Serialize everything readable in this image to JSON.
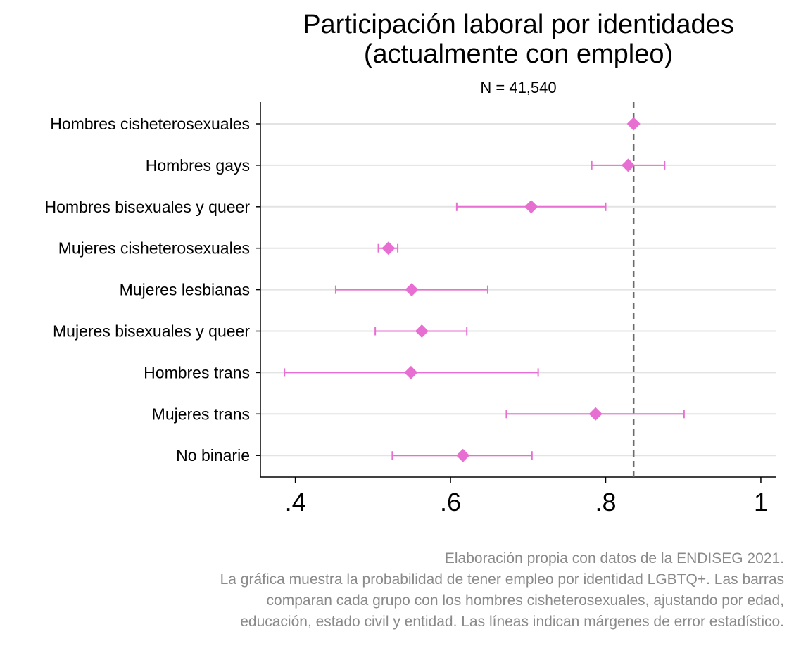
{
  "chart_data": {
    "type": "scatter",
    "title": [
      "Participación laboral por identidades",
      "(actualmente con empleo)"
    ],
    "subtitle": "N = 41,540",
    "marker_color": "#e76fd2",
    "reference_line": 0.836,
    "xlim": [
      0.355,
      1.02
    ],
    "x_ticks": [
      0.4,
      0.6,
      0.8,
      1.0
    ],
    "x_tick_labels": [
      ".4",
      ".6",
      ".8",
      "1"
    ],
    "grid": "horizontal",
    "categories": [
      "Hombres cisheterosexuales",
      "Hombres gays",
      "Hombres bisexuales y queer",
      "Mujeres cisheterosexuales",
      "Mujeres lesbianas",
      "Mujeres bisexuales y queer",
      "Hombres trans",
      "Mujeres trans",
      "No binarie"
    ],
    "estimates": [
      {
        "value": 0.836,
        "ci": null
      },
      {
        "value": 0.829,
        "ci": [
          0.782,
          0.876
        ]
      },
      {
        "value": 0.704,
        "ci": [
          0.608,
          0.8
        ]
      },
      {
        "value": 0.52,
        "ci": [
          0.507,
          0.532
        ]
      },
      {
        "value": 0.55,
        "ci": [
          0.452,
          0.648
        ]
      },
      {
        "value": 0.563,
        "ci": [
          0.503,
          0.621
        ]
      },
      {
        "value": 0.549,
        "ci": [
          0.386,
          0.713
        ]
      },
      {
        "value": 0.787,
        "ci": [
          0.672,
          0.901
        ]
      },
      {
        "value": 0.616,
        "ci": [
          0.525,
          0.705
        ]
      }
    ]
  },
  "notes": [
    "Elaboración propia con datos de la ENDISEG 2021.",
    "La gráfica muestra la probabilidad de tener empleo por identidad LGBTQ+. Las barras",
    "comparan cada grupo con los hombres cisheterosexuales, ajustando por edad,",
    "educación, estado civil y entidad. Las líneas indican márgenes de error estadístico."
  ]
}
